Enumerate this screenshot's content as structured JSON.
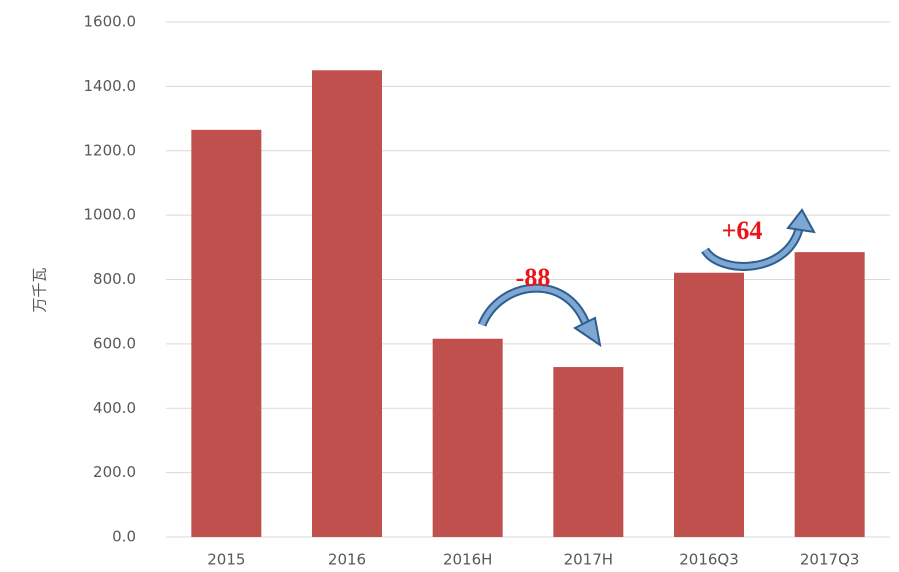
{
  "chart_data": {
    "type": "bar",
    "y_label": "万千瓦",
    "categories": [
      "2015",
      "2016",
      "2016H",
      "2017H",
      "2016Q3",
      "2017Q3"
    ],
    "values": [
      1265,
      1450,
      616,
      528,
      821,
      885
    ],
    "color": "#c0504d",
    "ylim": [
      0,
      1600
    ],
    "yticks": [
      {
        "value": 0,
        "label": "0.0"
      },
      {
        "value": 200,
        "label": "200.0"
      },
      {
        "value": 400,
        "label": "400.0"
      },
      {
        "value": 600,
        "label": "600.0"
      },
      {
        "value": 800,
        "label": "800.0"
      },
      {
        "value": 1000,
        "label": "1000.0"
      },
      {
        "value": 1200,
        "label": "1200.0"
      },
      {
        "value": 1400,
        "label": "1400.0"
      },
      {
        "value": 1600,
        "label": "1600.0"
      }
    ],
    "grid": true,
    "annotations": [
      "-88",
      "+64"
    ]
  }
}
